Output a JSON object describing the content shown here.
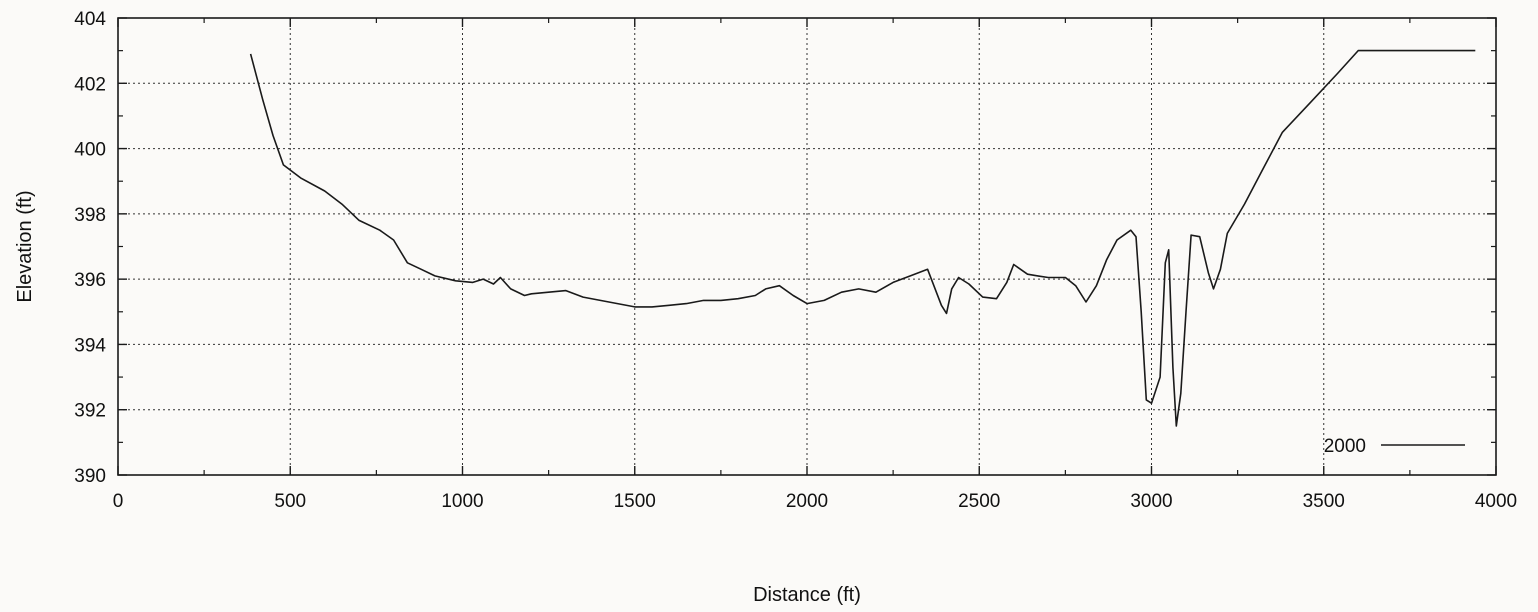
{
  "chart_data": {
    "type": "line",
    "xlabel": "Distance (ft)",
    "ylabel": "Elevation (ft)",
    "xlim": [
      0,
      4000
    ],
    "ylim": [
      390,
      404
    ],
    "xticks": [
      0,
      500,
      1000,
      1500,
      2000,
      2500,
      3000,
      3500,
      4000
    ],
    "yticks": [
      390,
      392,
      394,
      396,
      398,
      400,
      402,
      404
    ],
    "grid": true,
    "legend_position": "bottom-right",
    "series": [
      {
        "name": "2000",
        "color": "#1a1a1a",
        "points": [
          [
            385,
            402.9
          ],
          [
            420,
            401.5
          ],
          [
            450,
            400.4
          ],
          [
            480,
            399.5
          ],
          [
            530,
            399.1
          ],
          [
            600,
            398.7
          ],
          [
            650,
            398.3
          ],
          [
            700,
            397.8
          ],
          [
            760,
            397.5
          ],
          [
            800,
            397.2
          ],
          [
            840,
            396.5
          ],
          [
            880,
            396.3
          ],
          [
            920,
            396.1
          ],
          [
            980,
            395.95
          ],
          [
            1030,
            395.9
          ],
          [
            1060,
            396.0
          ],
          [
            1090,
            395.85
          ],
          [
            1110,
            396.05
          ],
          [
            1140,
            395.7
          ],
          [
            1180,
            395.5
          ],
          [
            1200,
            395.55
          ],
          [
            1250,
            395.6
          ],
          [
            1300,
            395.65
          ],
          [
            1350,
            395.45
          ],
          [
            1400,
            395.35
          ],
          [
            1450,
            395.25
          ],
          [
            1500,
            395.15
          ],
          [
            1550,
            395.15
          ],
          [
            1600,
            395.2
          ],
          [
            1650,
            395.25
          ],
          [
            1700,
            395.35
          ],
          [
            1750,
            395.35
          ],
          [
            1800,
            395.4
          ],
          [
            1850,
            395.5
          ],
          [
            1880,
            395.7
          ],
          [
            1920,
            395.8
          ],
          [
            1960,
            395.5
          ],
          [
            2000,
            395.25
          ],
          [
            2050,
            395.35
          ],
          [
            2100,
            395.6
          ],
          [
            2150,
            395.7
          ],
          [
            2200,
            395.6
          ],
          [
            2250,
            395.9
          ],
          [
            2300,
            396.1
          ],
          [
            2350,
            396.3
          ],
          [
            2390,
            395.2
          ],
          [
            2405,
            394.95
          ],
          [
            2420,
            395.7
          ],
          [
            2440,
            396.05
          ],
          [
            2470,
            395.85
          ],
          [
            2510,
            395.45
          ],
          [
            2550,
            395.4
          ],
          [
            2580,
            395.9
          ],
          [
            2600,
            396.45
          ],
          [
            2640,
            396.15
          ],
          [
            2670,
            396.1
          ],
          [
            2700,
            396.05
          ],
          [
            2750,
            396.05
          ],
          [
            2780,
            395.8
          ],
          [
            2810,
            395.3
          ],
          [
            2840,
            395.8
          ],
          [
            2870,
            396.6
          ],
          [
            2900,
            397.2
          ],
          [
            2940,
            397.5
          ],
          [
            2955,
            397.3
          ],
          [
            2970,
            395.0
          ],
          [
            2985,
            392.3
          ],
          [
            3000,
            392.2
          ],
          [
            3025,
            393.0
          ],
          [
            3040,
            396.5
          ],
          [
            3050,
            396.9
          ],
          [
            3062,
            393.3
          ],
          [
            3072,
            391.5
          ],
          [
            3085,
            392.5
          ],
          [
            3100,
            395.0
          ],
          [
            3115,
            397.35
          ],
          [
            3140,
            397.3
          ],
          [
            3165,
            396.2
          ],
          [
            3180,
            395.7
          ],
          [
            3200,
            396.3
          ],
          [
            3220,
            397.4
          ],
          [
            3270,
            398.3
          ],
          [
            3320,
            399.3
          ],
          [
            3380,
            400.5
          ],
          [
            3460,
            401.4
          ],
          [
            3540,
            402.3
          ],
          [
            3600,
            403.0
          ],
          [
            3940,
            403.0
          ]
        ]
      }
    ]
  }
}
